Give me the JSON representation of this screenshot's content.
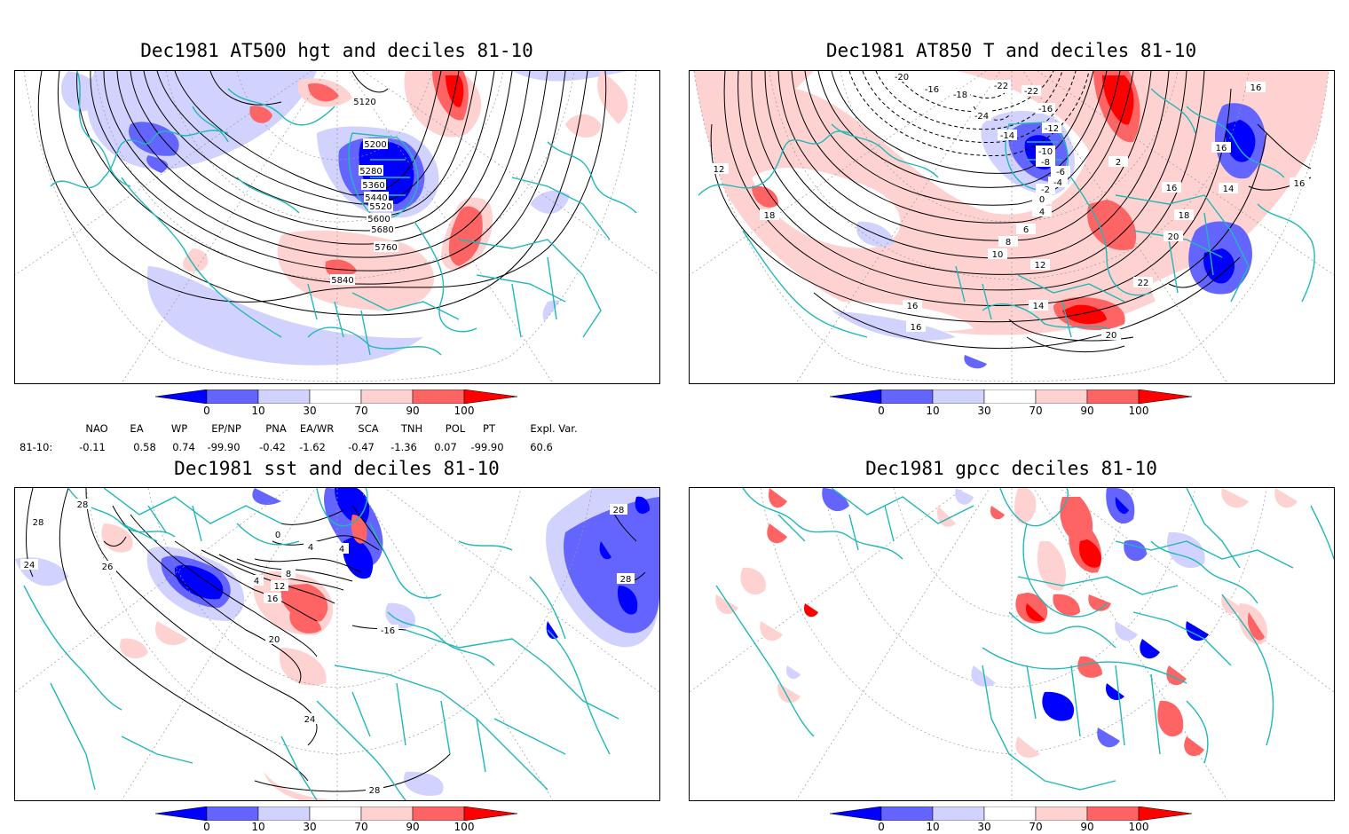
{
  "panels": [
    {
      "title": "Dec1981 AT500 hgt and deciles 81-10",
      "contour_labels": [
        "5120",
        "5200",
        "5280",
        "5360",
        "5440",
        "5520",
        "5600",
        "5680",
        "5760",
        "5840"
      ]
    },
    {
      "title": "Dec1981 AT850 T and deciles 81-10",
      "contour_labels": [
        "-20",
        "-16",
        "-18",
        "-22",
        "-22",
        "-24",
        "-16",
        "-14",
        "-12",
        "-10",
        "-8",
        "-6",
        "-4",
        "-2",
        "0",
        "2",
        "4",
        "6",
        "8",
        "10",
        "12",
        "14",
        "16",
        "16",
        "16",
        "16",
        "18",
        "18",
        "20",
        "20",
        "22",
        "14",
        "12",
        "16",
        "16"
      ]
    },
    {
      "title": "Dec1981 sst and deciles 81-10",
      "contour_labels": [
        "28",
        "28",
        "24",
        "26",
        "0",
        "4",
        "4",
        "4",
        "8",
        "12",
        "16",
        "20",
        "24",
        "28",
        "28",
        "28",
        "-16"
      ]
    },
    {
      "title": "Dec1981 gpcc deciles 81-10",
      "contour_labels": []
    }
  ],
  "colorbar": {
    "ticks": [
      "0",
      "10",
      "30",
      "70",
      "90",
      "100"
    ],
    "colors": [
      "#0000ff",
      "#6464ff",
      "#d2d2ff",
      "#ffffff",
      "#ffd2d2",
      "#ff6464",
      "#ff0000"
    ]
  },
  "indices": {
    "row_label": "81-10:",
    "items": [
      {
        "name": "NAO",
        "value": "-0.11"
      },
      {
        "name": "EA",
        "value": "0.58"
      },
      {
        "name": "WP",
        "value": "0.74"
      },
      {
        "name": "EP/NP",
        "value": "-99.90"
      },
      {
        "name": "PNA",
        "value": "-0.42"
      },
      {
        "name": "EA/WR",
        "value": "-1.62"
      },
      {
        "name": "SCA",
        "value": "-0.47"
      },
      {
        "name": "TNH",
        "value": "-1.36"
      },
      {
        "name": "POL",
        "value": "0.07"
      },
      {
        "name": "PT",
        "value": "-99.90"
      },
      {
        "name": "Expl. Var.",
        "value": "60.6"
      }
    ]
  },
  "colors": {
    "coast": "#20b8b8",
    "contour": "#000000",
    "grid": "#999999"
  }
}
